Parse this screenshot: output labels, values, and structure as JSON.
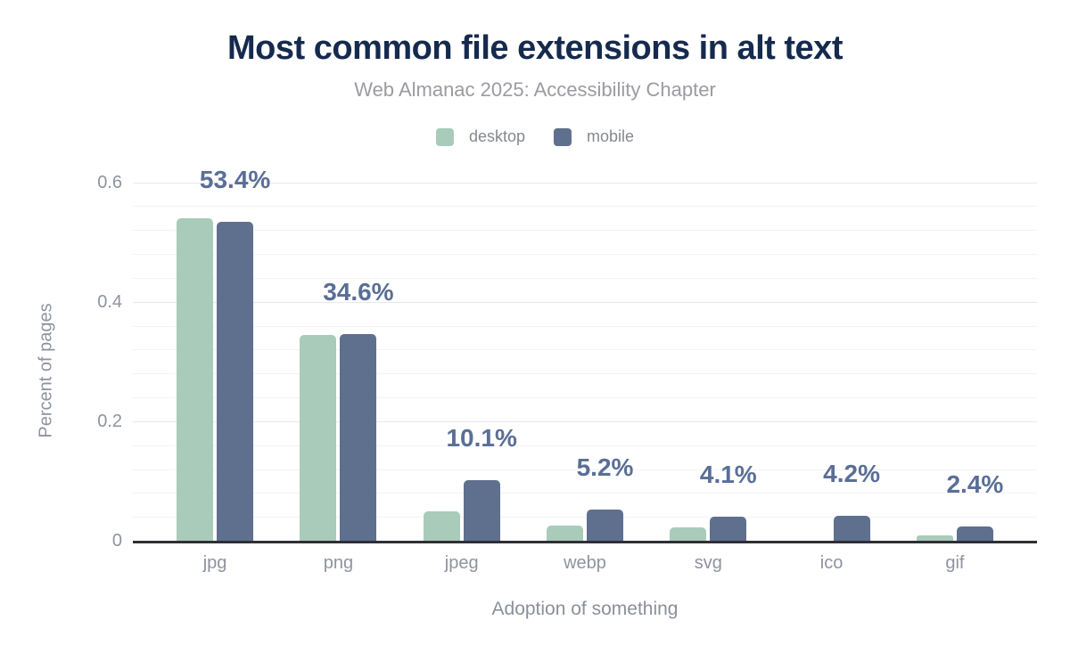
{
  "chart_data": {
    "type": "bar",
    "title": "Most common file extensions in alt text",
    "subtitle": "Web Almanac 2025: Accessibility Chapter",
    "xlabel": "Adoption of something",
    "ylabel": "Percent of pages",
    "categories": [
      "jpg",
      "png",
      "jpeg",
      "webp",
      "svg",
      "ico",
      "gif"
    ],
    "series": [
      {
        "name": "desktop",
        "color": "#a9cbb9",
        "values": [
          0.54,
          0.344,
          0.049,
          0.026,
          0.023,
          0.0,
          0.009
        ]
      },
      {
        "name": "mobile",
        "color": "#5f708e",
        "values": [
          0.534,
          0.346,
          0.101,
          0.052,
          0.041,
          0.042,
          0.024
        ]
      }
    ],
    "data_labels": [
      "53.4%",
      "34.6%",
      "10.1%",
      "5.2%",
      "4.1%",
      "4.2%",
      "2.4%"
    ],
    "data_labels_on_series": "mobile",
    "y_ticks": [
      {
        "value": 0.0,
        "label": "0"
      },
      {
        "value": 0.2,
        "label": "0.2"
      },
      {
        "value": 0.4,
        "label": "0.4"
      },
      {
        "value": 0.6,
        "label": "0.6"
      }
    ],
    "ylim": [
      0,
      0.62
    ],
    "minor_grid_step": 0.04,
    "major_grid_step": 0.2,
    "grid": true,
    "legend_position": "top-center"
  },
  "colors": {
    "title": "#152a4d",
    "subtitle": "#9b9ba1",
    "axis_text": "#8e939e",
    "data_label": "#5a6e96",
    "baseline": "#2f2f36",
    "grid_minor": "#f3f3f3",
    "grid_major": "#e9e9e9",
    "desktop_bar": "#a9cbb9",
    "mobile_bar": "#5f708e"
  }
}
